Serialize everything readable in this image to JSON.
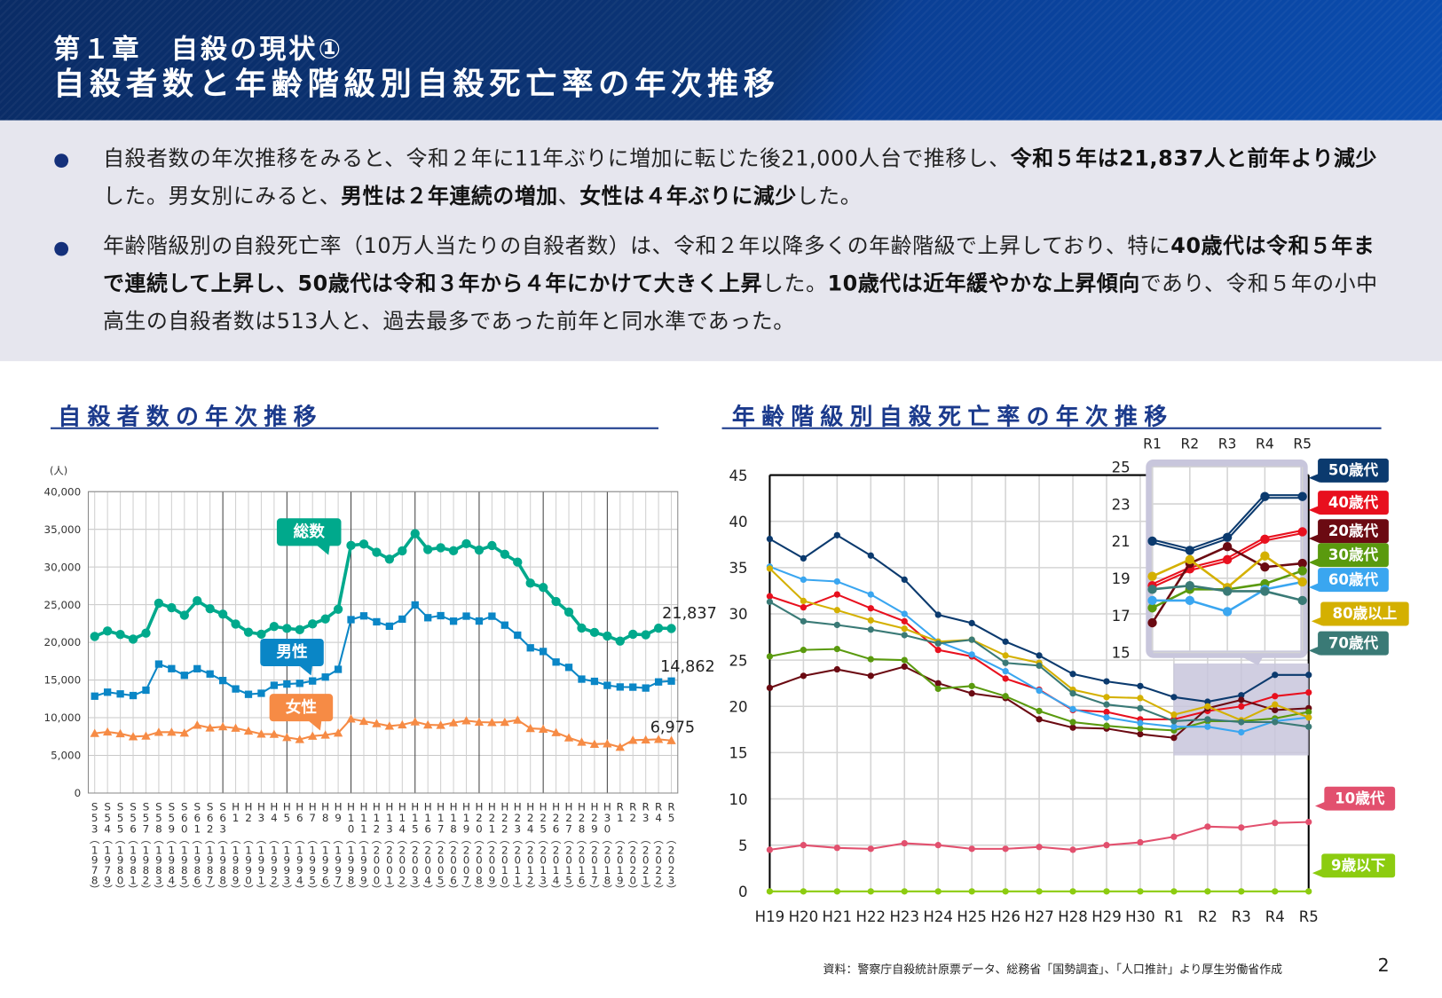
{
  "header": {
    "chapter": "第１章　自殺の現状①",
    "title": "自殺者数と年齢階級別自殺死亡率の年次推移"
  },
  "bullets": [
    {
      "segments": [
        {
          "text": "自殺者数の年次推移をみると、令和２年に11年ぶりに増加に転じた後21,000人台で推移し、",
          "bold": false
        },
        {
          "text": "令和５年は21,837人と前年より減少",
          "bold": true
        },
        {
          "text": "した。男女別にみると、",
          "bold": false
        },
        {
          "text": "男性は２年連続の増加",
          "bold": true
        },
        {
          "text": "、",
          "bold": false
        },
        {
          "text": "女性は４年ぶりに減少",
          "bold": true
        },
        {
          "text": "した。",
          "bold": false
        }
      ]
    },
    {
      "segments": [
        {
          "text": "年齢階級別の自殺死亡率（10万人当たりの自殺者数）は、令和２年以降多くの年齢階級で上昇しており、特に",
          "bold": false
        },
        {
          "text": "40歳代は令和５年まで連続して上昇し、50歳代は令和３年から４年にかけて大きく上昇",
          "bold": true
        },
        {
          "text": "した。",
          "bold": false
        },
        {
          "text": "10歳代は近年緩やかな上昇傾向",
          "bold": true
        },
        {
          "text": "であり、令和５年の小中高生の自殺者数は513人と、過去最多であった前年と同水準であった。",
          "bold": false
        }
      ]
    }
  ],
  "sections": {
    "left_title": "自殺者数の年次推移",
    "right_title": "年齢階級別自殺死亡率の年次推移"
  },
  "footer": {
    "source": "資料：警察庁自殺統計原票データ、総務省「国勢調査」、「人口推計」より厚生労働省作成",
    "page": "2"
  },
  "chart_data": [
    {
      "type": "line",
      "title": "自殺者数の年次推移",
      "ylabel": "(人)",
      "ylim": [
        0,
        40000
      ],
      "yticks": [
        "0",
        "5,000",
        "10,000",
        "15,000",
        "20,000",
        "25,000",
        "30,000",
        "35,000",
        "40,000"
      ],
      "grid": true,
      "categories": [
        "S53",
        "S54",
        "S55",
        "S56",
        "S57",
        "S58",
        "S59",
        "S60",
        "S61",
        "S62",
        "S63",
        "H1",
        "H2",
        "H3",
        "H4",
        "H5",
        "H6",
        "H7",
        "H8",
        "H9",
        "H10",
        "H11",
        "H12",
        "H13",
        "H14",
        "H15",
        "H16",
        "H17",
        "H18",
        "H19",
        "H20",
        "H21",
        "H22",
        "H23",
        "H24",
        "H25",
        "H26",
        "H27",
        "H28",
        "H29",
        "H30",
        "R1",
        "R2",
        "R3",
        "R4",
        "R5"
      ],
      "years": [
        "1978",
        "1979",
        "1980",
        "1981",
        "1982",
        "1983",
        "1984",
        "1985",
        "1986",
        "1987",
        "1988",
        "1989",
        "1990",
        "1991",
        "1992",
        "1993",
        "1994",
        "1995",
        "1996",
        "1997",
        "1998",
        "1999",
        "2000",
        "2001",
        "2002",
        "2003",
        "2004",
        "2005",
        "2006",
        "2007",
        "2008",
        "2009",
        "2010",
        "2011",
        "2012",
        "2013",
        "2014",
        "2015",
        "2016",
        "2017",
        "2018",
        "2019",
        "2020",
        "2021",
        "2022",
        "2023"
      ],
      "series": [
        {
          "name": "総数",
          "color": "#00a98c",
          "marker": "circle",
          "end_label": "21,837",
          "values": [
            20788,
            21503,
            21048,
            20434,
            21228,
            25202,
            24596,
            23599,
            25524,
            24460,
            23742,
            22436,
            21346,
            21084,
            22104,
            21851,
            21679,
            22445,
            23104,
            24391,
            32863,
            33048,
            31957,
            31042,
            32143,
            34427,
            32325,
            32552,
            32155,
            33093,
            32249,
            32845,
            31690,
            30651,
            27858,
            27283,
            25427,
            24025,
            21897,
            21321,
            20840,
            20169,
            21081,
            21007,
            21881,
            21837
          ]
        },
        {
          "name": "男性",
          "color": "#0a86c6",
          "marker": "square",
          "end_label": "14,862",
          "values": [
            12859,
            13386,
            13155,
            12942,
            13654,
            17116,
            16508,
            15624,
            16497,
            15802,
            14934,
            13818,
            13102,
            13242,
            14296,
            14468,
            14560,
            14874,
            15393,
            16416,
            23013,
            23512,
            22727,
            22144,
            23080,
            24963,
            23272,
            23540,
            22813,
            23478,
            22831,
            23472,
            22283,
            20955,
            19273,
            18787,
            17386,
            16681,
            15121,
            14826,
            14290,
            14078,
            14055,
            13939,
            14746,
            14862
          ]
        },
        {
          "name": "女性",
          "color": "#f68b45",
          "marker": "triangle",
          "end_label": "6,975",
          "values": [
            7929,
            8117,
            7893,
            7492,
            7574,
            8086,
            8088,
            7975,
            9027,
            8658,
            8808,
            8618,
            8244,
            7842,
            7808,
            7383,
            7119,
            7571,
            7711,
            7975,
            9850,
            9536,
            9230,
            8898,
            9063,
            9464,
            9053,
            9012,
            9342,
            9615,
            9418,
            9373,
            9407,
            9696,
            8585,
            8496,
            8041,
            7344,
            6776,
            6495,
            6550,
            6091,
            7026,
            7068,
            7135,
            6975
          ]
        }
      ]
    },
    {
      "type": "line",
      "title": "年齢階級別自殺死亡率の年次推移",
      "ylim": [
        0,
        45
      ],
      "yticks": [
        "0",
        "5",
        "10",
        "15",
        "20",
        "25",
        "30",
        "35",
        "40",
        "45"
      ],
      "grid": true,
      "categories": [
        "H19",
        "H20",
        "H21",
        "H22",
        "H23",
        "H24",
        "H25",
        "H26",
        "H27",
        "H28",
        "H29",
        "H30",
        "R1",
        "R2",
        "R3",
        "R4",
        "R5"
      ],
      "inset": {
        "categories": [
          "R1",
          "R2",
          "R3",
          "R4",
          "R5"
        ],
        "ylim": [
          15,
          25
        ],
        "yticks": [
          "15",
          "17",
          "19",
          "21",
          "23",
          "25"
        ]
      },
      "series": [
        {
          "name": "50歳代",
          "color": "#0b3a6e",
          "values": [
            38.1,
            36.0,
            38.5,
            36.3,
            33.7,
            29.9,
            29.0,
            27.0,
            25.5,
            23.5,
            22.7,
            22.2,
            21.0,
            20.5,
            21.2,
            23.4,
            23.4
          ]
        },
        {
          "name": "40歳代",
          "color": "#e8101e",
          "values": [
            31.9,
            30.7,
            32.1,
            30.6,
            29.2,
            26.1,
            25.4,
            23.0,
            21.8,
            19.6,
            19.4,
            18.6,
            18.6,
            19.5,
            20.0,
            21.1,
            21.5
          ]
        },
        {
          "name": "20歳代",
          "color": "#6b0a12",
          "values": [
            22.0,
            23.3,
            24.0,
            23.3,
            24.3,
            22.5,
            21.4,
            20.9,
            18.6,
            17.7,
            17.6,
            17.0,
            16.6,
            19.8,
            20.7,
            19.6,
            19.8
          ]
        },
        {
          "name": "30歳代",
          "color": "#5a9a0e",
          "values": [
            25.4,
            26.1,
            26.2,
            25.1,
            25.0,
            21.9,
            22.2,
            21.1,
            19.5,
            18.3,
            17.9,
            17.6,
            17.4,
            18.4,
            18.4,
            18.7,
            19.4
          ]
        },
        {
          "name": "60歳代",
          "color": "#3aa6f0",
          "values": [
            35.1,
            33.7,
            33.5,
            32.1,
            30.0,
            27.0,
            25.6,
            23.8,
            21.7,
            19.7,
            18.8,
            18.2,
            17.8,
            17.8,
            17.2,
            18.4,
            18.8
          ]
        },
        {
          "name": "80歳以上",
          "color": "#d4b000",
          "values": [
            34.9,
            31.4,
            30.4,
            29.3,
            28.4,
            27.0,
            27.2,
            25.5,
            24.7,
            21.8,
            21.0,
            20.9,
            19.1,
            20.0,
            18.5,
            20.2,
            18.8
          ]
        },
        {
          "name": "70歳代",
          "color": "#3a7a76",
          "values": [
            31.3,
            29.2,
            28.8,
            28.3,
            27.7,
            26.8,
            27.2,
            24.7,
            24.4,
            21.4,
            20.2,
            19.8,
            18.4,
            18.6,
            18.3,
            18.3,
            17.8
          ]
        },
        {
          "name": "10歳代",
          "color": "#e2506e",
          "values": [
            4.5,
            5.0,
            4.7,
            4.6,
            5.2,
            5.0,
            4.6,
            4.6,
            4.8,
            4.5,
            5.0,
            5.3,
            5.9,
            7.0,
            6.9,
            7.4,
            7.5
          ]
        },
        {
          "name": "9歳以下",
          "color": "#8ccc10",
          "values": [
            0,
            0,
            0,
            0,
            0,
            0,
            0,
            0,
            0,
            0,
            0,
            0,
            0,
            0,
            0,
            0,
            0
          ]
        }
      ]
    }
  ]
}
